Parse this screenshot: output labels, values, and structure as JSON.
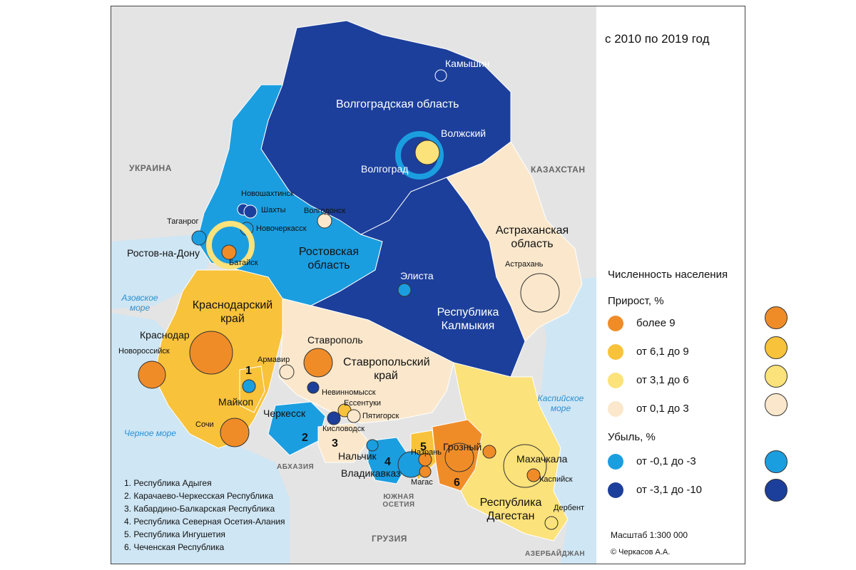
{
  "period": "с 2010 по 2019 год",
  "countries": {
    "ukraine": "УКРАИНА",
    "kazakhstan": "КАЗАХСТАН",
    "abkhazia": "АБХАЗИЯ",
    "south_ossetia": "ЮЖНАЯ ОСЕТИЯ",
    "georgia": "ГРУЗИЯ",
    "azerbaijan": "АЗЕРБАЙДЖАН"
  },
  "seas": {
    "azov": "Азовское море",
    "black": "Черное море",
    "caspian": "Каспийское море"
  },
  "regions": {
    "volgograd": "Волгоградская область",
    "rostov": "Ростовская область",
    "krasnodar": "Краснодарский край",
    "stavropol": "Ставропольский край",
    "astrakhan": "Астраханская область",
    "kalmykia": "Республика Калмыкия",
    "dagestan": "Республика Дагестан"
  },
  "region_numbers": [
    "1",
    "2",
    "3",
    "4",
    "5",
    "6"
  ],
  "cities": {
    "kamyshin": "Камышин",
    "volzhsky": "Волжский",
    "volgograd": "Волгоград",
    "novoshakhtinsk": "Новошахтинск",
    "shakhty": "Шахты",
    "taganrog": "Таганрог",
    "novocherkassk": "Новочеркасск",
    "volgodonsk": "Волгодонск",
    "rostov": "Ростов-на-Дону",
    "bataysk": "Батайск",
    "elista": "Элиста",
    "astrakhan": "Астрахань",
    "krasnodar": "Краснодар",
    "novorossiysk": "Новороссийск",
    "armavir": "Армавир",
    "stavropol": "Ставрополь",
    "maykop": "Майкоп",
    "nevinnomyssk": "Невинномысск",
    "essentuki": "Ессентуки",
    "pyatigorsk": "Пятигорск",
    "cherkessk": "Черкесск",
    "kislovodsk": "Кисловодск",
    "sochi": "Сочи",
    "nalchik": "Нальчик",
    "grozny": "Грозный",
    "nazran": "Назрань",
    "vladikavkaz": "Владикавказ",
    "magas": "Магас",
    "makhachkala": "Махачкала",
    "kaspiysk": "Каспийск",
    "derbent": "Дербент"
  },
  "legend": {
    "title": "Численность населения",
    "growth_title": "Прирост, %",
    "decline_title": "Убыль, %",
    "growth": [
      {
        "label": "более 9",
        "color": "#f08c28"
      },
      {
        "label": "от 6,1 до 9",
        "color": "#f8c23a"
      },
      {
        "label": "от 3,1 до 6",
        "color": "#fbe27a"
      },
      {
        "label": "от 0,1 до 3",
        "color": "#fbe8cc"
      }
    ],
    "decline": [
      {
        "label": "от -0,1 до -3",
        "color": "#1b9ee0"
      },
      {
        "label": "от -3,1 до -10",
        "color": "#1c3f9b"
      }
    ]
  },
  "notes": [
    "1. Республика Адыгея",
    "2. Карачаево-Черкесская Республика",
    "3. Кабардино-Балкарская Республика",
    "4. Республика Северная Осетия-Алания",
    "5. Республика Ингушетия",
    "6. Чеченская Республика"
  ],
  "scale": "Масштаб 1:300 000",
  "copyright": "© Черкасов А.А.",
  "colors": {
    "dark_blue": "#1c3f9b",
    "light_blue": "#1b9ee0",
    "orange": "#f08c28",
    "yellow": "#f8c23a",
    "light_yellow": "#fbe27a",
    "beige": "#fbe8cc",
    "sea": "#cfe6f4",
    "land": "#e6e6e6"
  }
}
